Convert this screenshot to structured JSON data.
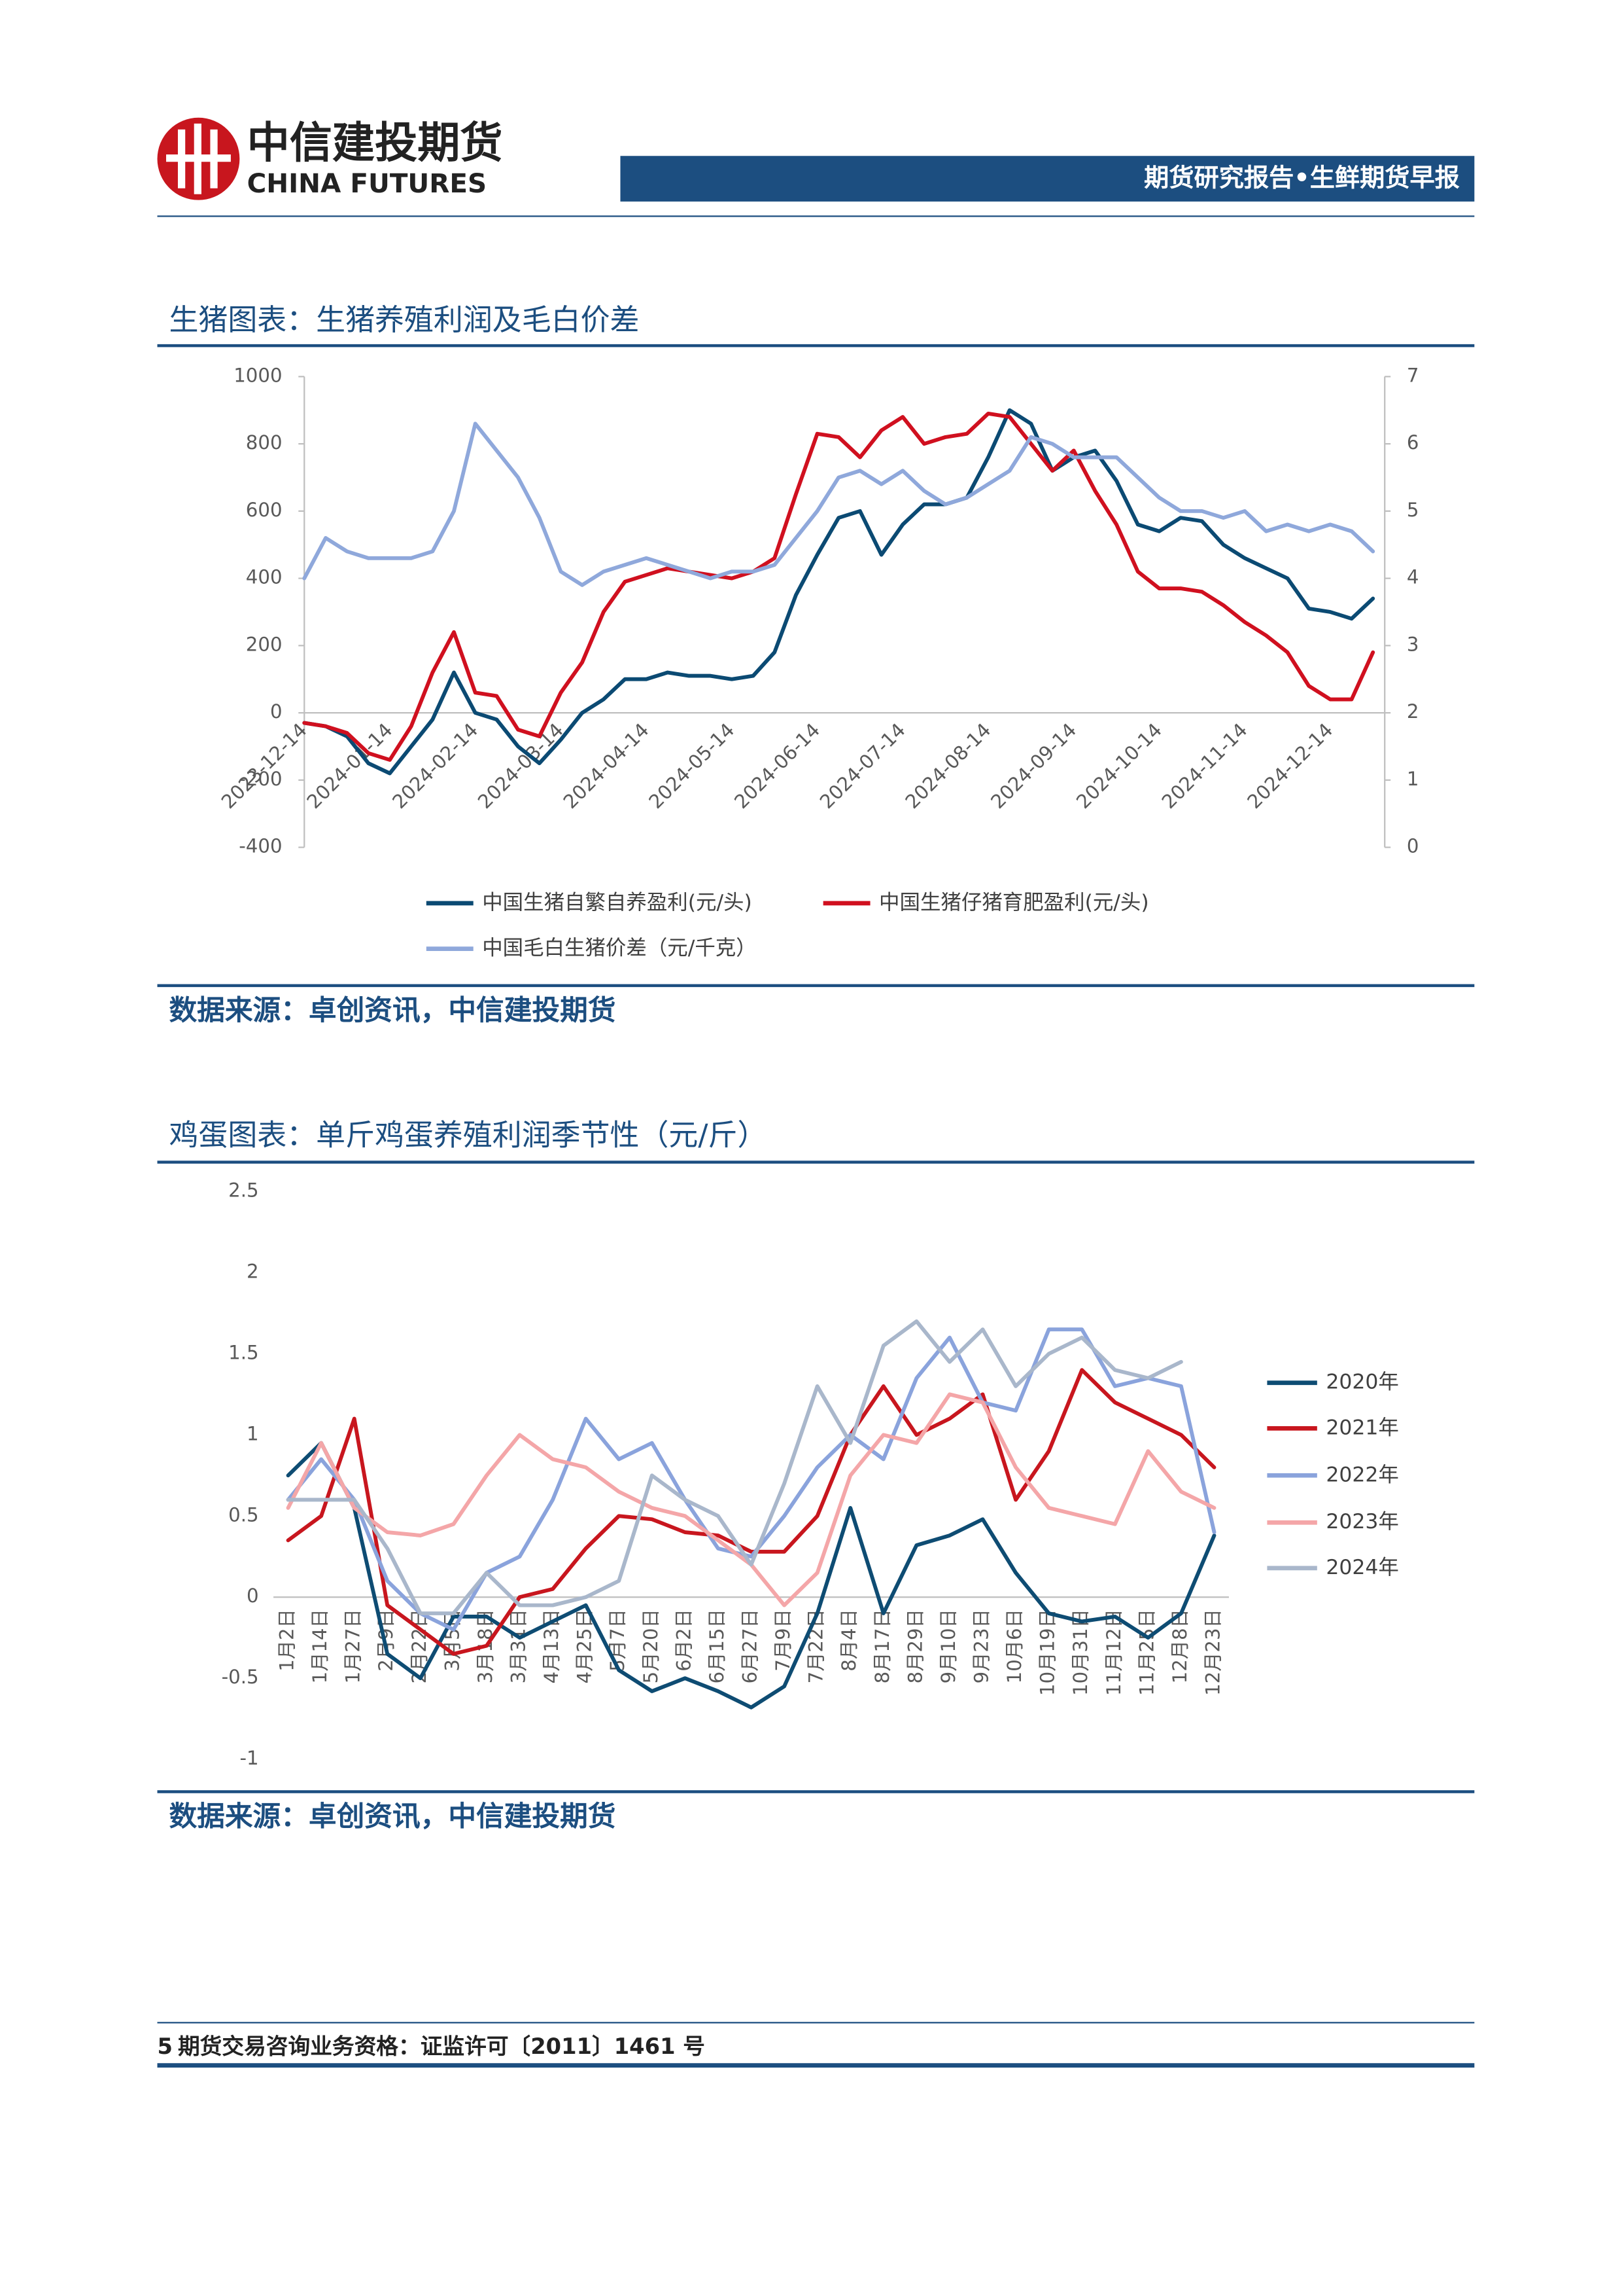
{
  "header": {
    "logo_cn": "中信建投期货",
    "logo_en": "CHINA FUTURES",
    "report": "期货研究报告•生鲜期货早报"
  },
  "sections": [
    {
      "title": "生猪图表：生猪养殖利润及毛白价差",
      "source": "数据来源：卓创资讯，中信建投期货"
    },
    {
      "title": "鸡蛋图表：单斤鸡蛋养殖利润季节性（元/斤）",
      "source": "数据来源：卓创资讯，中信建投期货"
    }
  ],
  "chart_data": [
    {
      "type": "line",
      "categories": [
        "2023-12-14",
        null,
        null,
        null,
        "2024-01-14",
        null,
        null,
        null,
        "2024-02-14",
        null,
        null,
        null,
        "2024-03-14",
        null,
        null,
        null,
        "2024-04-14",
        null,
        null,
        null,
        "2024-05-14",
        null,
        null,
        null,
        "2024-06-14",
        null,
        null,
        null,
        "2024-07-14",
        null,
        null,
        null,
        "2024-08-14",
        null,
        null,
        null,
        "2024-09-14",
        null,
        null,
        null,
        "2024-10-14",
        null,
        null,
        null,
        "2024-11-14",
        null,
        null,
        null,
        "2024-12-14",
        null,
        null
      ],
      "series": [
        {
          "name": "中国生猪自繁自养盈利(元/头)",
          "color": "#0b4a73",
          "values": [
            -30,
            -40,
            -70,
            -150,
            -180,
            -100,
            -20,
            120,
            0,
            -20,
            -100,
            -150,
            -80,
            0,
            40,
            100,
            100,
            120,
            110,
            110,
            100,
            110,
            180,
            350,
            470,
            580,
            600,
            470,
            560,
            620,
            620,
            640,
            760,
            900,
            860,
            720,
            760,
            780,
            690,
            560,
            540,
            580,
            570,
            500,
            460,
            430,
            400,
            310,
            300,
            280,
            340
          ]
        },
        {
          "name": "中国生猪仔猪育肥盈利(元/头)",
          "color": "#d0101f",
          "values": [
            -30,
            -40,
            -60,
            -120,
            -140,
            -40,
            120,
            240,
            60,
            50,
            -50,
            -70,
            60,
            150,
            300,
            390,
            410,
            430,
            420,
            410,
            400,
            420,
            460,
            650,
            830,
            820,
            760,
            840,
            880,
            800,
            820,
            830,
            890,
            880,
            800,
            720,
            780,
            660,
            560,
            420,
            370,
            370,
            360,
            320,
            270,
            230,
            180,
            80,
            40,
            40,
            180
          ]
        },
        {
          "name": "中国毛白生猪价差（元/千克）",
          "color": "#8fa8db",
          "axis": "y2",
          "values": [
            4.0,
            4.6,
            4.4,
            4.3,
            4.3,
            4.3,
            4.4,
            5.0,
            6.3,
            5.9,
            5.5,
            4.9,
            4.1,
            3.9,
            4.1,
            4.2,
            4.3,
            4.2,
            4.1,
            4.0,
            4.1,
            4.1,
            4.2,
            4.6,
            5.0,
            5.5,
            5.6,
            5.4,
            5.6,
            5.3,
            5.1,
            5.2,
            5.4,
            5.6,
            6.1,
            6.0,
            5.8,
            5.8,
            5.8,
            5.5,
            5.2,
            5.0,
            5.0,
            4.9,
            5.0,
            4.7,
            4.8,
            4.7,
            4.8,
            4.7,
            4.4
          ]
        }
      ],
      "ylim": [
        -400,
        1000
      ],
      "yticks": [
        -400,
        -200,
        0,
        200,
        400,
        600,
        800,
        1000
      ],
      "y2lim": [
        0,
        7
      ],
      "y2ticks": [
        0,
        1,
        2,
        3,
        4,
        5,
        6,
        7
      ],
      "grid": false,
      "legend": "bottom"
    },
    {
      "type": "line",
      "categories": [
        "1月2日",
        "1月14日",
        "1月27日",
        "2月9日",
        "2月22日",
        "3月5日",
        "3月18日",
        "3月31日",
        "4月13日",
        "4月25日",
        "5月7日",
        "5月20日",
        "6月2日",
        "6月15日",
        "6月27日",
        "7月9日",
        "7月22日",
        "8月4日",
        "8月17日",
        "8月29日",
        "9月10日",
        "9月23日",
        "10月6日",
        "10月19日",
        "10月31日",
        "11月12日",
        "11月25日",
        "12月8日",
        "12月23日"
      ],
      "series": [
        {
          "name": "2020年",
          "color": "#0e4c73",
          "values": [
            0.75,
            0.95,
            0.55,
            -0.35,
            -0.5,
            -0.12,
            -0.12,
            -0.25,
            -0.15,
            -0.05,
            -0.45,
            -0.58,
            -0.5,
            -0.58,
            -0.68,
            -0.55,
            -0.1,
            0.55,
            -0.1,
            0.32,
            0.38,
            0.48,
            0.15,
            -0.1,
            -0.15,
            -0.12,
            -0.25,
            -0.1,
            0.38
          ]
        },
        {
          "name": "2021年",
          "color": "#c8161e",
          "values": [
            0.35,
            0.5,
            1.1,
            -0.05,
            -0.2,
            -0.35,
            -0.3,
            0.0,
            0.05,
            0.3,
            0.5,
            0.48,
            0.4,
            0.38,
            0.28,
            0.28,
            0.5,
            1.0,
            1.3,
            1.0,
            1.1,
            1.25,
            0.6,
            0.9,
            1.4,
            1.2,
            1.1,
            1.0,
            0.8
          ]
        },
        {
          "name": "2022年",
          "color": "#8aa3dc",
          "values": [
            0.6,
            0.85,
            0.6,
            0.1,
            -0.1,
            -0.2,
            0.15,
            0.25,
            0.6,
            1.1,
            0.85,
            0.95,
            0.6,
            0.3,
            0.25,
            0.5,
            0.8,
            1.0,
            0.85,
            1.35,
            1.6,
            1.2,
            1.15,
            1.65,
            1.65,
            1.3,
            1.35,
            1.3,
            0.4
          ]
        },
        {
          "name": "2023年",
          "color": "#f4a6a8",
          "values": [
            0.55,
            0.95,
            0.55,
            0.4,
            0.38,
            0.45,
            0.75,
            1.0,
            0.85,
            0.8,
            0.65,
            0.55,
            0.5,
            0.35,
            0.2,
            -0.05,
            0.15,
            0.75,
            1.0,
            0.95,
            1.25,
            1.2,
            0.8,
            0.55,
            0.5,
            0.45,
            0.9,
            0.65,
            0.55
          ]
        },
        {
          "name": "2024年",
          "color": "#a9b7cb",
          "values": [
            0.6,
            0.6,
            0.6,
            0.3,
            -0.1,
            -0.1,
            0.15,
            -0.05,
            -0.05,
            0.0,
            0.1,
            0.75,
            0.6,
            0.5,
            0.2,
            0.7,
            1.3,
            0.95,
            1.55,
            1.7,
            1.45,
            1.65,
            1.3,
            1.5,
            1.6,
            1.4,
            1.35,
            1.45,
            null
          ]
        }
      ],
      "ylim": [
        -1,
        2.5
      ],
      "yticks": [
        -1,
        -0.5,
        0,
        0.5,
        1,
        1.5,
        2,
        2.5
      ],
      "grid": false,
      "legend": "right"
    }
  ],
  "footer": {
    "page": "5",
    "text": "期货交易咨询业务资格：证监许可〔2011〕1461 号"
  }
}
